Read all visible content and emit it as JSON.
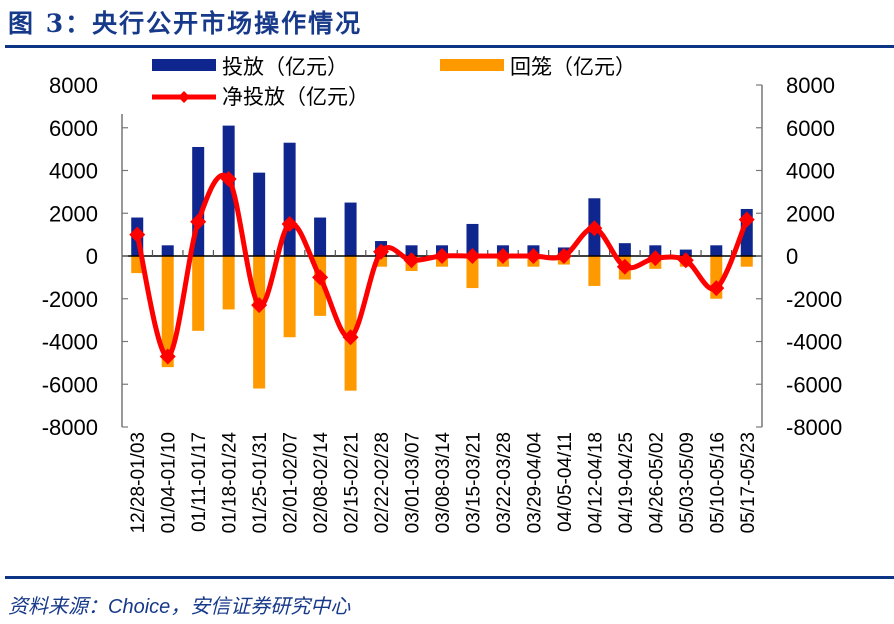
{
  "header": {
    "title": "图 3：央行公开市场操作情况"
  },
  "footer": {
    "source_prefix": "资料来源：",
    "source_name": "Choice",
    "source_suffix": "，安信证券研究中心"
  },
  "colors": {
    "title": "#17398a",
    "rule": "#0d3585",
    "injection": "#0f268f",
    "withdrawal": "#ff9900",
    "net": "#ff0000"
  },
  "chart_data": {
    "type": "bar+line",
    "title": "央行公开市场操作情况",
    "categories": [
      "12/28-01/03",
      "01/04-01/10",
      "01/11-01/17",
      "01/18-01/24",
      "01/25-01/31",
      "02/01-02/07",
      "02/08-02/14",
      "02/15-02/21",
      "02/22-02/28",
      "03/01-03/07",
      "03/08-03/14",
      "03/15-03/21",
      "03/22-03/28",
      "03/29-04/04",
      "04/05-04/11",
      "04/12-04/18",
      "04/19-04/25",
      "04/26-05/02",
      "05/03-05/09",
      "05/10-05/16",
      "05/17-05/23"
    ],
    "series": [
      {
        "name": "投放（亿元）",
        "type": "bar",
        "values": [
          1800,
          500,
          5100,
          6100,
          3900,
          5300,
          1800,
          2500,
          700,
          500,
          500,
          1500,
          500,
          500,
          400,
          2700,
          600,
          500,
          300,
          500,
          2200
        ]
      },
      {
        "name": "回笼（亿元）",
        "type": "bar",
        "values": [
          -800,
          -5200,
          -3500,
          -2500,
          -6200,
          -3800,
          -2800,
          -6300,
          -500,
          -700,
          -500,
          -1500,
          -500,
          -500,
          -400,
          -1400,
          -1100,
          -600,
          -500,
          -2000,
          -500
        ]
      },
      {
        "name": "净投放（亿元）",
        "type": "line",
        "values": [
          1000,
          -4700,
          1600,
          3600,
          -2300,
          1500,
          -1000,
          -3800,
          200,
          -200,
          0,
          0,
          0,
          0,
          0,
          1300,
          -500,
          -100,
          -200,
          -1500,
          1700
        ]
      }
    ],
    "legend": [
      "投放（亿元）",
      "回笼（亿元）",
      "净投放（亿元）"
    ],
    "legend_position": "top",
    "y_left": {
      "ylim": [
        -8000,
        8000
      ],
      "ticks": [
        "8000",
        "6000",
        "4000",
        "2000",
        "0",
        "-2000",
        "-4000",
        "-6000",
        "-8000"
      ]
    },
    "y_right": {
      "ylim": [
        -8000,
        8000
      ],
      "ticks": [
        "8000",
        "6000",
        "4000",
        "2000",
        "0",
        "-2000",
        "-4000",
        "-6000",
        "-8000"
      ]
    },
    "xlabel": "",
    "ylabel": "",
    "grid": false
  }
}
